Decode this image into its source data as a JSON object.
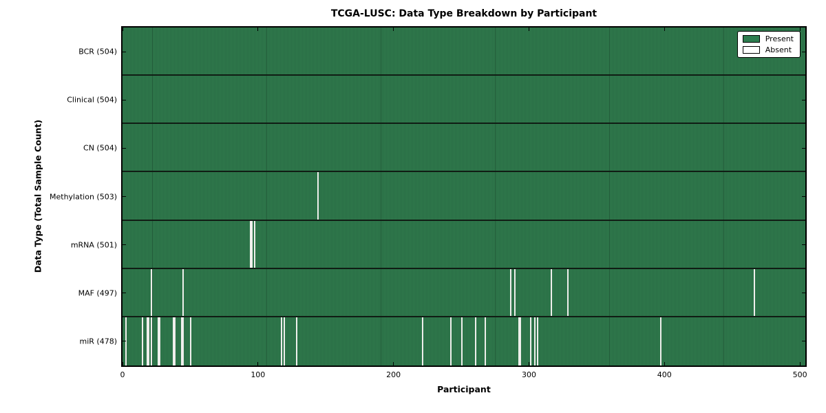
{
  "chart_data": {
    "type": "heatmap",
    "title": "TCGA-LUSC: Data Type Breakdown by Participant",
    "xlabel": "Participant",
    "ylabel": "Data Type (Total Sample Count)",
    "n_participants": 504,
    "x_ticks": [
      0,
      100,
      200,
      300,
      400,
      500
    ],
    "grid": false,
    "legend_position": "upper right",
    "legend_items": [
      {
        "label": "Present",
        "color": "#2e7d4f"
      },
      {
        "label": "Absent",
        "color": "#ffffff"
      }
    ],
    "colors": {
      "present": "#2c7348",
      "absent": "#efefec",
      "row_separator": "#101c14"
    },
    "rows": [
      {
        "label": "BCR (504)",
        "data_type": "BCR",
        "total": 504,
        "absent_participants": []
      },
      {
        "label": "Clinical (504)",
        "data_type": "Clinical",
        "total": 504,
        "absent_participants": []
      },
      {
        "label": "CN (504)",
        "data_type": "CN",
        "total": 504,
        "absent_participants": []
      },
      {
        "label": "Methylation (503)",
        "data_type": "Methylation",
        "total": 503,
        "absent_participants": [
          144
        ]
      },
      {
        "label": "mRNA (501)",
        "data_type": "mRNA",
        "total": 501,
        "absent_participants": [
          94,
          95,
          97
        ]
      },
      {
        "label": "MAF (497)",
        "data_type": "MAF",
        "total": 497,
        "absent_participants": [
          21,
          44,
          286,
          289,
          316,
          328,
          466
        ]
      },
      {
        "label": "miR (478)",
        "data_type": "miR",
        "total": 478,
        "absent_participants": [
          2,
          14,
          18,
          19,
          21,
          26,
          27,
          37,
          38,
          43,
          44,
          50,
          117,
          119,
          128,
          221,
          242,
          250,
          260,
          267,
          292,
          293,
          301,
          304,
          306,
          397
        ]
      }
    ]
  }
}
